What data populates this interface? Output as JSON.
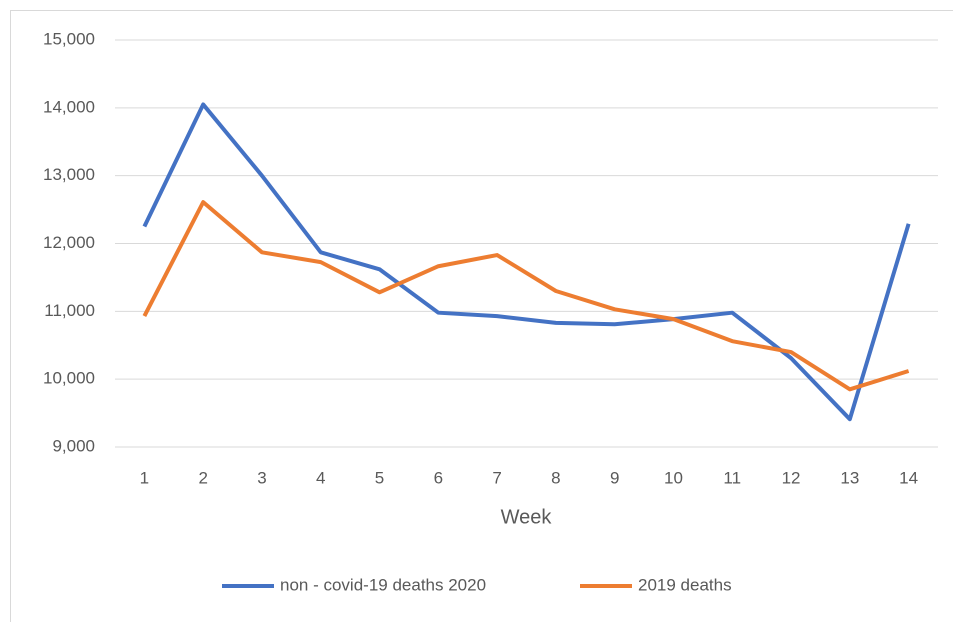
{
  "chart_data": {
    "type": "line",
    "x_label": "Week",
    "categories": [
      "1",
      "2",
      "3",
      "4",
      "5",
      "6",
      "7",
      "8",
      "9",
      "10",
      "11",
      "12",
      "13",
      "14"
    ],
    "series": [
      {
        "name": "non - covid-19 deaths 2020",
        "color": "#4472c4",
        "values": [
          12250,
          14050,
          13000,
          11870,
          11620,
          10980,
          10930,
          10830,
          10810,
          10885,
          10980,
          10310,
          9410,
          12290
        ]
      },
      {
        "name": "2019 deaths",
        "color": "#ed7d31",
        "values": [
          10930,
          12610,
          11870,
          11725,
          11280,
          11665,
          11830,
          11300,
          11030,
          10885,
          10560,
          10400,
          9850,
          10120
        ]
      }
    ],
    "ylim": [
      9000,
      15000
    ],
    "yticks": [
      {
        "value": 9000,
        "label": "9,000"
      },
      {
        "value": 10000,
        "label": "10,000"
      },
      {
        "value": 11000,
        "label": "11,000"
      },
      {
        "value": 12000,
        "label": "12,000"
      },
      {
        "value": 13000,
        "label": "13,000"
      },
      {
        "value": 14000,
        "label": "14,000"
      },
      {
        "value": 15000,
        "label": "15,000"
      }
    ],
    "grid": true,
    "legend": "bottom"
  }
}
